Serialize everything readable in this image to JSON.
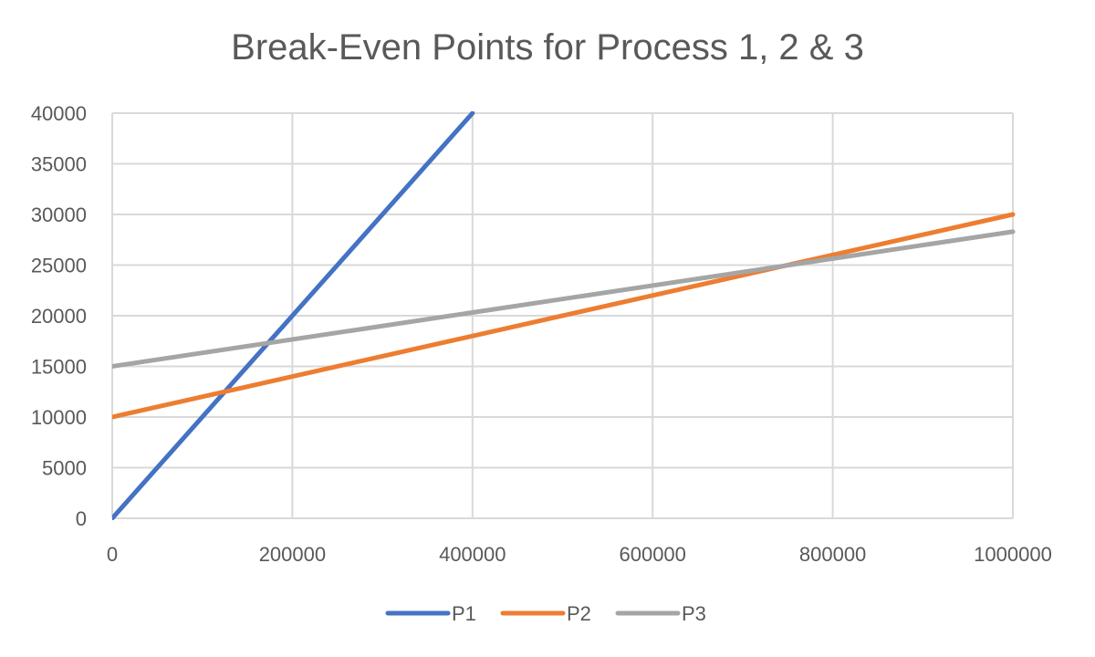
{
  "chart_data": {
    "type": "line",
    "title": "Break-Even Points for Process 1, 2 & 3",
    "xlabel": "",
    "ylabel": "",
    "xlim": [
      0,
      1000000
    ],
    "ylim": [
      0,
      40000
    ],
    "x_ticks": [
      "0",
      "200000",
      "400000",
      "600000",
      "800000",
      "1000000"
    ],
    "y_ticks": [
      "0",
      "5000",
      "10000",
      "15000",
      "20000",
      "25000",
      "30000",
      "35000",
      "40000"
    ],
    "grid": true,
    "legend_position": "bottom",
    "series": [
      {
        "name": "P1",
        "color": "#4472C4",
        "x": [
          0,
          400000
        ],
        "y": [
          0,
          40000
        ]
      },
      {
        "name": "P2",
        "color": "#ED7D31",
        "x": [
          0,
          1000000
        ],
        "y": [
          10000,
          30000
        ]
      },
      {
        "name": "P3",
        "color": "#A5A5A5",
        "x": [
          0,
          1000000
        ],
        "y": [
          15000,
          28300
        ]
      }
    ]
  }
}
